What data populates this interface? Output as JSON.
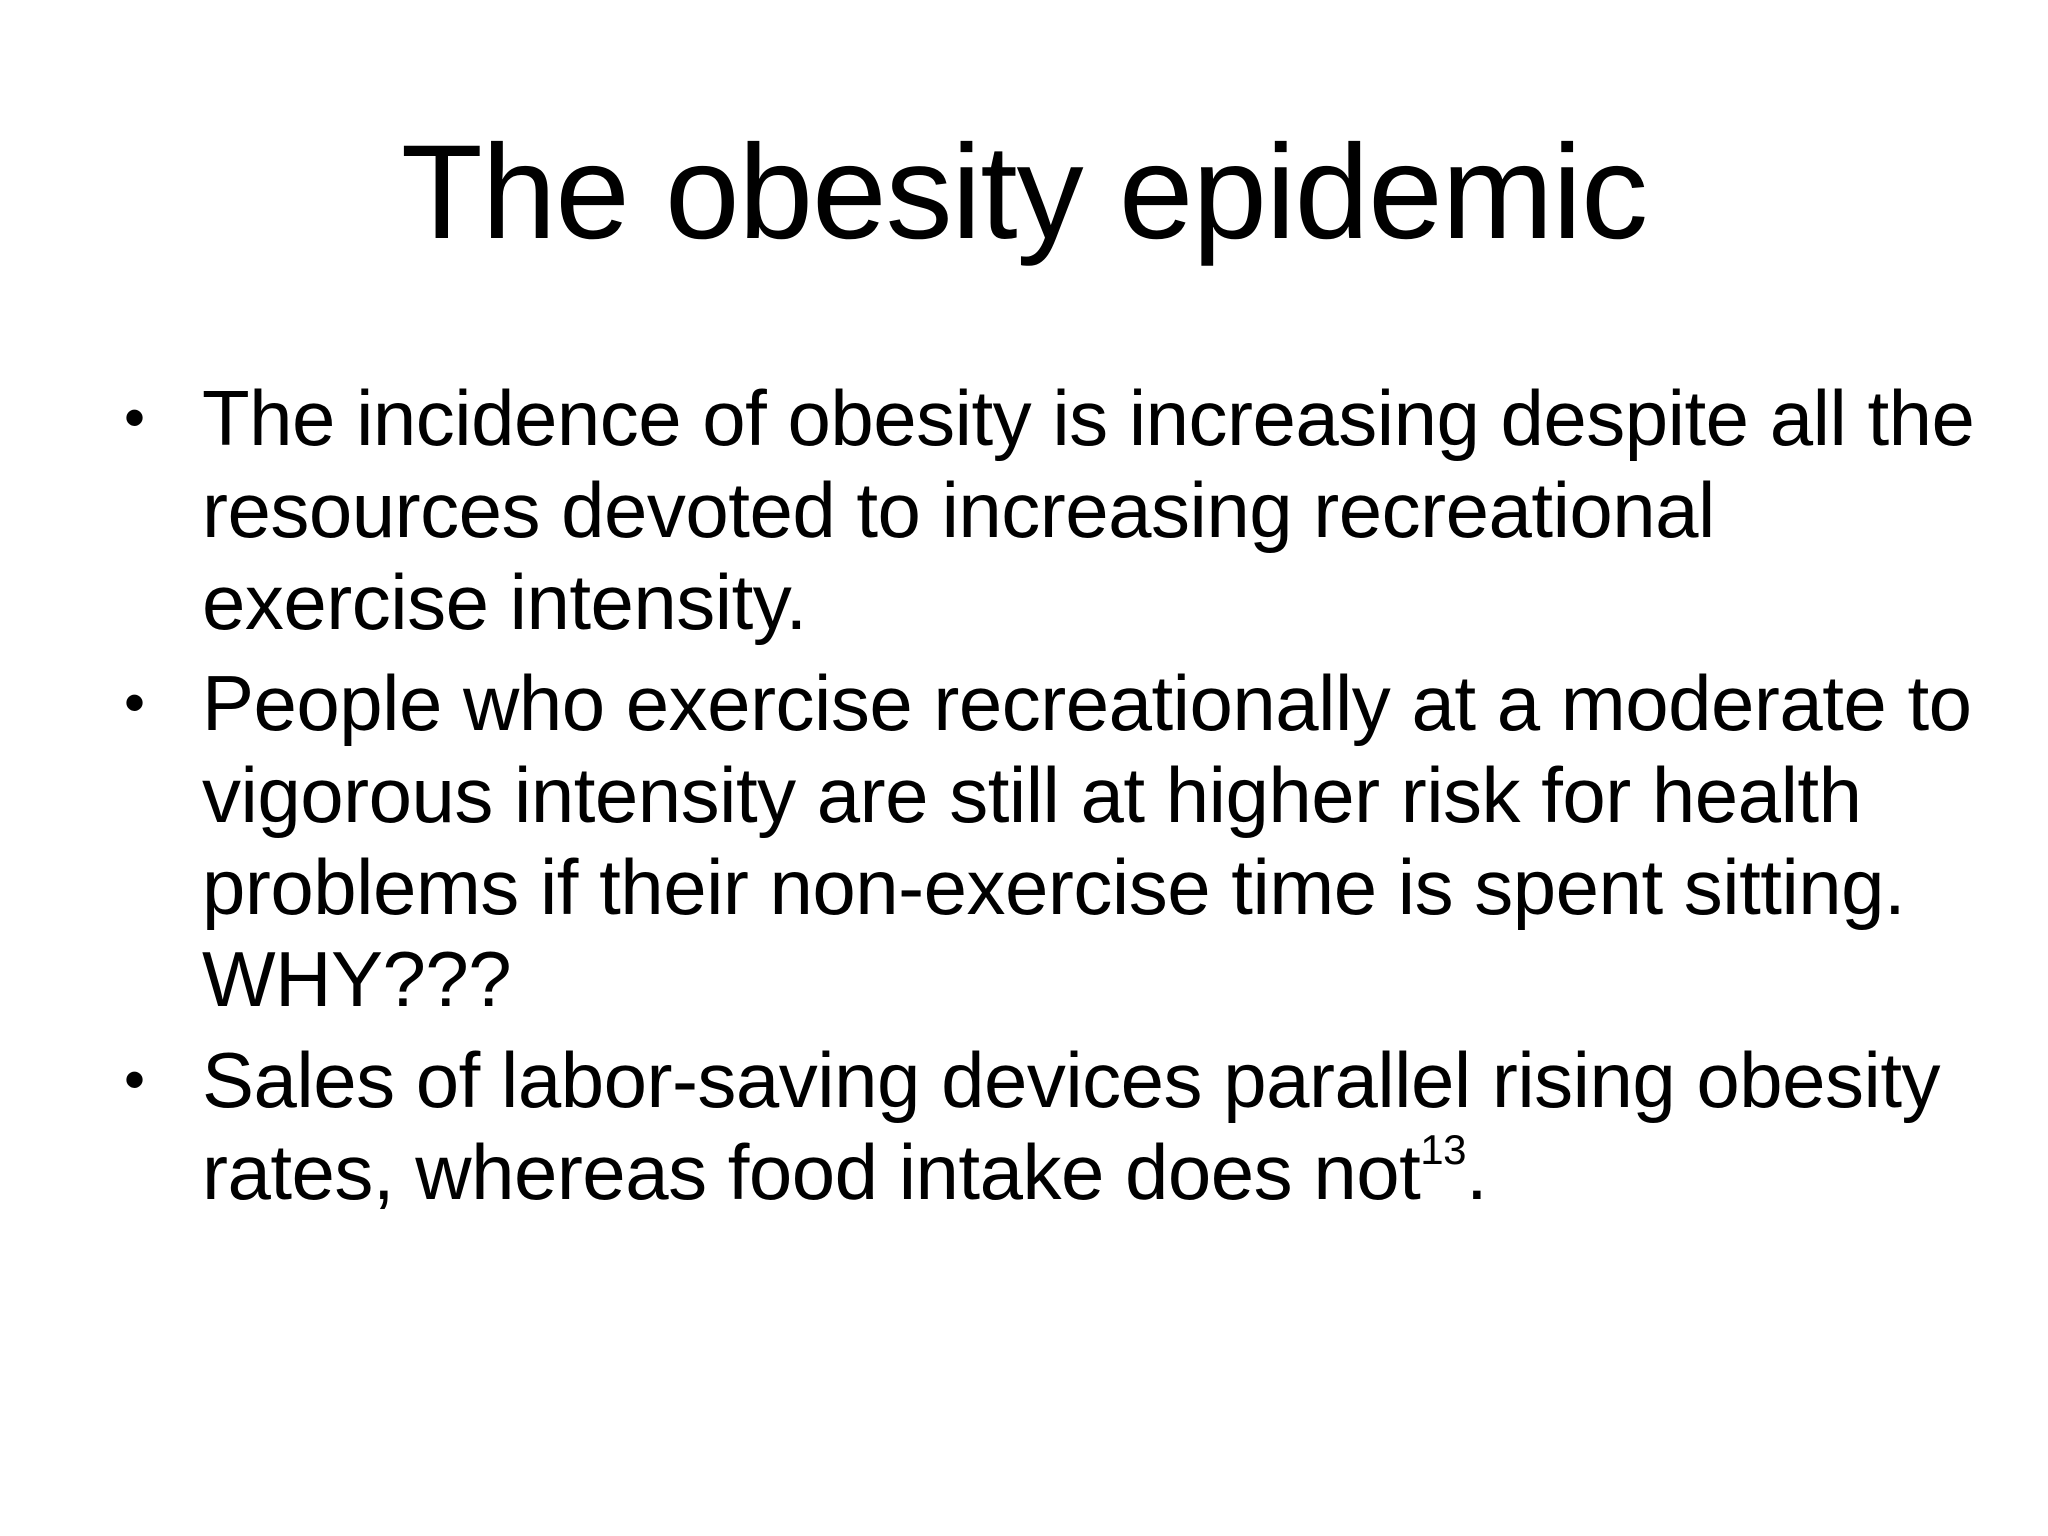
{
  "slide": {
    "title": "The obesity epidemic",
    "bullet_glyph": "•",
    "bullets": [
      {
        "text": "The incidence of obesity is increasing despite all the resources devoted to increasing recreational exercise intensity.",
        "sup": "",
        "tail": ""
      },
      {
        "text": "People who exercise recreationally at a moderate to vigorous intensity are still at higher risk for health problems if their non-exercise time is spent sitting.  WHY???",
        "sup": "",
        "tail": ""
      },
      {
        "text": "Sales of labor-saving devices parallel rising obesity rates, whereas food intake does not",
        "sup": "13",
        "tail": "."
      }
    ]
  }
}
